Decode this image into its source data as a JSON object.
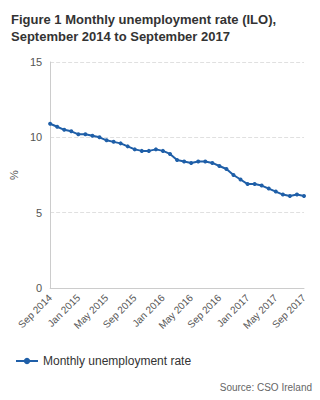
{
  "chart_data": {
    "type": "line",
    "title": "Figure 1 Monthly unemployment rate (ILO), September 2014 to September 2017",
    "y_label": "%",
    "source": "Source: CSO Ireland",
    "categories": [
      "Sep 2014",
      null,
      null,
      null,
      "Jan 2015",
      null,
      null,
      null,
      "May 2015",
      null,
      null,
      null,
      "Sep 2015",
      null,
      null,
      null,
      "Jan 2016",
      null,
      null,
      null,
      "May 2016",
      null,
      null,
      null,
      "Sep 2016",
      null,
      null,
      null,
      "Jan 2017",
      null,
      null,
      null,
      "May 2017",
      null,
      null,
      null,
      "Sep 2017"
    ],
    "series": [
      {
        "name": "Monthly unemployment rate",
        "color": "#1f5fa8",
        "marker": "circle",
        "values": [
          10.9,
          10.7,
          10.5,
          10.4,
          10.2,
          10.2,
          10.1,
          10.0,
          9.8,
          9.7,
          9.6,
          9.4,
          9.2,
          9.1,
          9.1,
          9.2,
          9.1,
          8.9,
          8.5,
          8.4,
          8.3,
          8.4,
          8.4,
          8.3,
          8.1,
          7.9,
          7.5,
          7.2,
          6.9,
          6.9,
          6.8,
          6.6,
          6.4,
          6.2,
          6.1,
          6.2,
          6.1
        ]
      }
    ],
    "ylim": [
      0,
      15
    ],
    "yticks": [
      0,
      5,
      10,
      15
    ],
    "grid": true,
    "legend": "bottom"
  }
}
